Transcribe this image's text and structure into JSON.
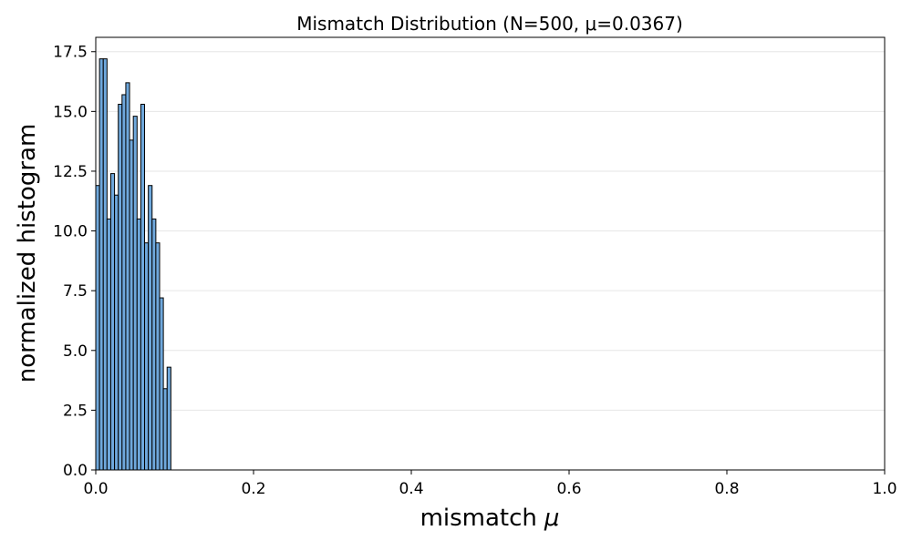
{
  "chart_data": {
    "type": "bar",
    "title": "Mismatch Distribution (N=500, μ=0.0367)",
    "xlabel": "mismatch",
    "xlabel_symbol": "μ",
    "ylabel": "normalized histogram",
    "xlim": [
      0.0,
      1.0
    ],
    "ylim": [
      0.0,
      18.1
    ],
    "grid": "y",
    "bar_color": "#6fa8dc",
    "edge_color": "#000000",
    "bin_width": 0.00476,
    "bin_start": 0.0,
    "values": [
      11.9,
      17.2,
      17.2,
      10.5,
      12.4,
      11.5,
      15.3,
      15.7,
      16.2,
      13.8,
      14.8,
      10.5,
      15.3,
      9.5,
      11.9,
      10.5,
      9.5,
      7.2,
      3.4,
      4.3
    ],
    "x_ticks": [
      {
        "value": 0.0,
        "label": "0.0"
      },
      {
        "value": 0.2,
        "label": "0.2"
      },
      {
        "value": 0.4,
        "label": "0.4"
      },
      {
        "value": 0.6,
        "label": "0.6"
      },
      {
        "value": 0.8,
        "label": "0.8"
      },
      {
        "value": 1.0,
        "label": "1.0"
      }
    ],
    "y_ticks": [
      {
        "value": 0.0,
        "label": "0.0"
      },
      {
        "value": 2.5,
        "label": "2.5"
      },
      {
        "value": 5.0,
        "label": "5.0"
      },
      {
        "value": 7.5,
        "label": "7.5"
      },
      {
        "value": 10.0,
        "label": "10.0"
      },
      {
        "value": 12.5,
        "label": "12.5"
      },
      {
        "value": 15.0,
        "label": "15.0"
      },
      {
        "value": 17.5,
        "label": "17.5"
      }
    ]
  }
}
